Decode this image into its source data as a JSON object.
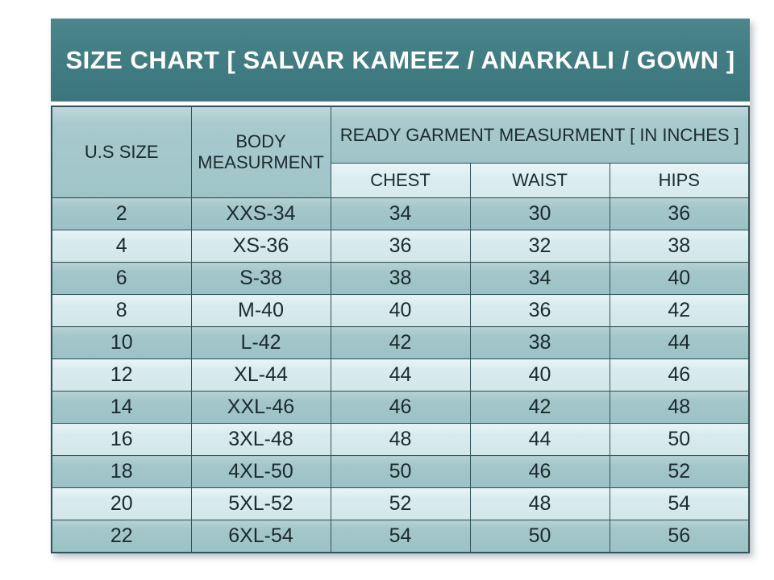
{
  "title": "SIZE CHART [ SALVAR KAMEEZ / ANARKALI / GOWN ]",
  "table": {
    "headers": {
      "us_size": "U.S SIZE",
      "body_measurement": "BODY MEASURMENT",
      "ready_garment": "READY GARMENT MEASURMENT [ IN INCHES ]",
      "chest": "CHEST",
      "waist": "WAIST",
      "hips": "HIPS"
    },
    "rows": [
      {
        "us": "2",
        "body": "XXS-34",
        "chest": "34",
        "waist": "30",
        "hips": "36"
      },
      {
        "us": "4",
        "body": "XS-36",
        "chest": "36",
        "waist": "32",
        "hips": "38"
      },
      {
        "us": "6",
        "body": "S-38",
        "chest": "38",
        "waist": "34",
        "hips": "40"
      },
      {
        "us": "8",
        "body": "M-40",
        "chest": "40",
        "waist": "36",
        "hips": "42"
      },
      {
        "us": "10",
        "body": "L-42",
        "chest": "42",
        "waist": "38",
        "hips": "44"
      },
      {
        "us": "12",
        "body": "XL-44",
        "chest": "44",
        "waist": "40",
        "hips": "46"
      },
      {
        "us": "14",
        "body": "XXL-46",
        "chest": "46",
        "waist": "42",
        "hips": "48"
      },
      {
        "us": "16",
        "body": "3XL-48",
        "chest": "48",
        "waist": "44",
        "hips": "50"
      },
      {
        "us": "18",
        "body": "4XL-50",
        "chest": "50",
        "waist": "46",
        "hips": "52"
      },
      {
        "us": "20",
        "body": "5XL-52",
        "chest": "52",
        "waist": "48",
        "hips": "54"
      },
      {
        "us": "22",
        "body": "6XL-54",
        "chest": "54",
        "waist": "50",
        "hips": "56"
      }
    ]
  },
  "colors": {
    "title_band": "#417d83",
    "header_cell": "#a5c8cb",
    "sub_header_cell": "#dcedf0",
    "row_dark": "#a3c6c9",
    "row_light": "#d8eaed",
    "border": "#30525a",
    "title_text": "#ffffff",
    "cell_text": "#1b2b2e"
  }
}
